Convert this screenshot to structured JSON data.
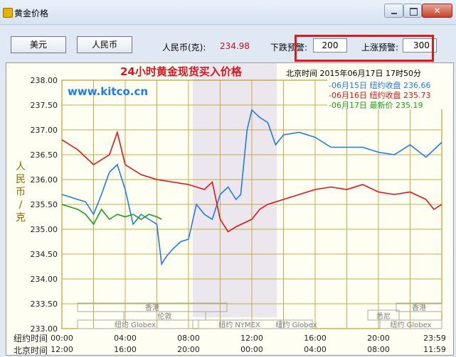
{
  "window": {
    "title": "黄金价格",
    "min_label": "",
    "max_label": "",
    "close_label": "✕"
  },
  "toolbar": {
    "usd_button": "美元",
    "rmb_button": "人民币",
    "price_label": "人民币(克):",
    "price_value": "234.98",
    "lower_alert_label": "下跌预警:",
    "lower_alert_value": "200",
    "upper_alert_label": "上涨预警:",
    "upper_alert_value": "300"
  },
  "chart_header": {
    "title": "24小时黄金现货买入价格",
    "beijing_time": "北京时间  2015年06月17日 17时50分",
    "watermark": "www.kitco.cn",
    "ylabel": "人民币/克",
    "legend": [
      "-06月15日  纽约收盘 236.66",
      "-06月16日  纽约收盘 235.73",
      "-06月17日     最新价 235.19"
    ]
  },
  "markets": [
    "香港",
    "伦敦",
    "纽约 Globex",
    "纽约 NYMEX",
    "纽约 Globex",
    "悉尼",
    "香港",
    "纽约 Globex"
  ],
  "axis_rows": {
    "ny_label": "纽约时间",
    "bj_label": "北京时间"
  },
  "chart_data": {
    "type": "line",
    "title": "24小时黄金现货买入价格",
    "ylabel": "人民币/克",
    "ylim": [
      233.0,
      238.0
    ],
    "yticks": [
      "238.00",
      "237.50",
      "237.00",
      "236.50",
      "236.00",
      "235.50",
      "235.00",
      "234.50",
      "234.00",
      "233.50",
      "233.00"
    ],
    "x_ny_ticks": [
      "00:00",
      "04:00",
      "08:00",
      "12:00",
      "16:00",
      "20:00",
      "23:59"
    ],
    "x_bj_ticks": [
      "12:00",
      "16:00",
      "20:00",
      "00:00",
      "04:00",
      "08:00",
      "11:59"
    ],
    "xlim_hours": [
      0,
      24
    ],
    "series": [
      {
        "name": "06月15日",
        "color": "#1e7ce6",
        "x": [
          0,
          1,
          1.5,
          2,
          2.5,
          3,
          3.5,
          4,
          4.5,
          5,
          5.5,
          6,
          6.3,
          6.6,
          7,
          7.5,
          8,
          8.5,
          9,
          9.5,
          10,
          10.5,
          11,
          11.3,
          11.7,
          12,
          12.5,
          13,
          13.5,
          14,
          15,
          16,
          17,
          18,
          19,
          19.5,
          20,
          21,
          22,
          23,
          23.5,
          24
        ],
        "y": [
          235.7,
          235.6,
          235.55,
          235.3,
          235.7,
          236.15,
          236.3,
          235.8,
          235.1,
          235.3,
          235.2,
          235.1,
          234.3,
          234.45,
          234.6,
          234.75,
          234.8,
          235.5,
          235.3,
          235.2,
          235.7,
          235.85,
          235.6,
          235.7,
          237.0,
          237.4,
          237.25,
          237.15,
          236.7,
          236.9,
          236.95,
          236.85,
          236.65,
          236.65,
          236.65,
          236.6,
          236.55,
          236.5,
          236.7,
          236.45,
          236.6,
          236.75
        ]
      },
      {
        "name": "06月16日",
        "color": "#e01414",
        "x": [
          0,
          1,
          2,
          3,
          3.5,
          4,
          4.5,
          5,
          6,
          7,
          8,
          9,
          9.5,
          10,
          10.5,
          11,
          12,
          12.5,
          13,
          14,
          15,
          16,
          17,
          18,
          19,
          20,
          21,
          22,
          23,
          23.5,
          24
        ],
        "y": [
          236.8,
          236.6,
          236.3,
          236.5,
          236.95,
          236.3,
          236.2,
          236.1,
          236.0,
          235.95,
          235.9,
          235.8,
          235.95,
          235.2,
          234.95,
          235.05,
          235.2,
          235.4,
          235.5,
          235.6,
          235.7,
          235.8,
          235.85,
          235.8,
          235.9,
          235.75,
          235.7,
          235.75,
          235.6,
          235.4,
          235.5
        ]
      },
      {
        "name": "06月17日",
        "color": "#1aa01a",
        "x": [
          0,
          0.5,
          1,
          1.5,
          2,
          2.5,
          3,
          3.5,
          4,
          4.5,
          5,
          5.5,
          6,
          6.3
        ],
        "y": [
          235.5,
          235.45,
          235.4,
          235.3,
          235.1,
          235.4,
          235.2,
          235.3,
          235.25,
          235.3,
          235.2,
          235.3,
          235.25,
          235.2
        ]
      }
    ]
  }
}
